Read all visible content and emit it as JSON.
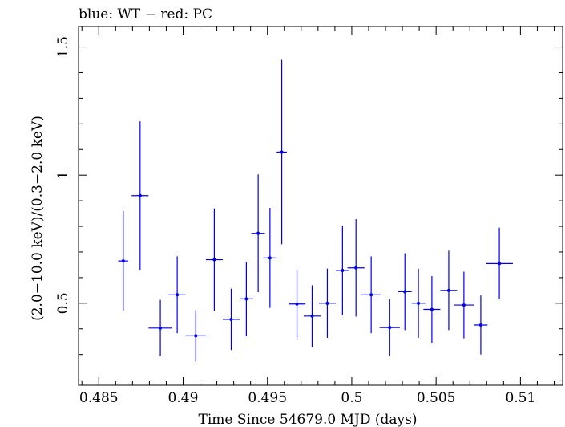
{
  "chart_data": {
    "type": "scatter",
    "title": "blue: WT − red: PC",
    "xlabel": "Time Since 54679.0 MJD (days)",
    "ylabel": "(2.0−10.0 keV)/(0.3−2.0 keV)",
    "xlim": [
      0.4838,
      0.5125
    ],
    "ylim": [
      0.18,
      1.58
    ],
    "x_ticks": [
      0.485,
      0.49,
      0.495,
      0.5,
      0.505,
      0.51
    ],
    "x_tick_labels": [
      "0.485",
      "0.49",
      "0.495",
      "0.5",
      "0.505",
      "0.51"
    ],
    "y_ticks": [
      0.5,
      1,
      1.5
    ],
    "y_tick_labels": [
      "0.5",
      "1",
      "1.5"
    ],
    "grid": false,
    "series": [
      {
        "color": "#0000ee",
        "points": [
          {
            "x": 0.48645,
            "y": 0.665,
            "xerr": 0.0003,
            "yerr_low": 0.195,
            "yerr_high": 0.195
          },
          {
            "x": 0.48745,
            "y": 0.92,
            "xerr": 0.0005,
            "yerr_low": 0.29,
            "yerr_high": 0.29
          },
          {
            "x": 0.48865,
            "y": 0.403,
            "xerr": 0.0007,
            "yerr_low": 0.11,
            "yerr_high": 0.11
          },
          {
            "x": 0.48965,
            "y": 0.533,
            "xerr": 0.0005,
            "yerr_low": 0.15,
            "yerr_high": 0.15
          },
          {
            "x": 0.49075,
            "y": 0.373,
            "xerr": 0.0006,
            "yerr_low": 0.1,
            "yerr_high": 0.1
          },
          {
            "x": 0.49185,
            "y": 0.67,
            "xerr": 0.0005,
            "yerr_low": 0.2,
            "yerr_high": 0.2
          },
          {
            "x": 0.49285,
            "y": 0.437,
            "xerr": 0.0005,
            "yerr_low": 0.12,
            "yerr_high": 0.12
          },
          {
            "x": 0.49375,
            "y": 0.517,
            "xerr": 0.0004,
            "yerr_low": 0.145,
            "yerr_high": 0.145
          },
          {
            "x": 0.49445,
            "y": 0.773,
            "xerr": 0.0004,
            "yerr_low": 0.23,
            "yerr_high": 0.23
          },
          {
            "x": 0.49515,
            "y": 0.677,
            "xerr": 0.0004,
            "yerr_low": 0.195,
            "yerr_high": 0.195
          },
          {
            "x": 0.49585,
            "y": 1.09,
            "xerr": 0.0003,
            "yerr_low": 0.36,
            "yerr_high": 0.36
          },
          {
            "x": 0.49675,
            "y": 0.497,
            "xerr": 0.0005,
            "yerr_low": 0.135,
            "yerr_high": 0.135
          },
          {
            "x": 0.49765,
            "y": 0.45,
            "xerr": 0.0005,
            "yerr_low": 0.12,
            "yerr_high": 0.12
          },
          {
            "x": 0.49855,
            "y": 0.5,
            "xerr": 0.0005,
            "yerr_low": 0.135,
            "yerr_high": 0.135
          },
          {
            "x": 0.49945,
            "y": 0.628,
            "xerr": 0.0004,
            "yerr_low": 0.175,
            "yerr_high": 0.175
          },
          {
            "x": 0.50025,
            "y": 0.638,
            "xerr": 0.0005,
            "yerr_low": 0.19,
            "yerr_high": 0.19
          },
          {
            "x": 0.50115,
            "y": 0.533,
            "xerr": 0.0006,
            "yerr_low": 0.15,
            "yerr_high": 0.15
          },
          {
            "x": 0.50225,
            "y": 0.405,
            "xerr": 0.0006,
            "yerr_low": 0.11,
            "yerr_high": 0.11
          },
          {
            "x": 0.50315,
            "y": 0.545,
            "xerr": 0.0004,
            "yerr_low": 0.15,
            "yerr_high": 0.15
          },
          {
            "x": 0.50395,
            "y": 0.5,
            "xerr": 0.0004,
            "yerr_low": 0.135,
            "yerr_high": 0.135
          },
          {
            "x": 0.50475,
            "y": 0.476,
            "xerr": 0.0005,
            "yerr_low": 0.13,
            "yerr_high": 0.13
          },
          {
            "x": 0.50575,
            "y": 0.55,
            "xerr": 0.0005,
            "yerr_low": 0.155,
            "yerr_high": 0.155
          },
          {
            "x": 0.50665,
            "y": 0.493,
            "xerr": 0.0006,
            "yerr_low": 0.13,
            "yerr_high": 0.13
          },
          {
            "x": 0.50765,
            "y": 0.415,
            "xerr": 0.0004,
            "yerr_low": 0.115,
            "yerr_high": 0.115
          },
          {
            "x": 0.50875,
            "y": 0.655,
            "xerr": 0.0008,
            "yerr_low": 0.14,
            "yerr_high": 0.14
          }
        ]
      }
    ]
  }
}
